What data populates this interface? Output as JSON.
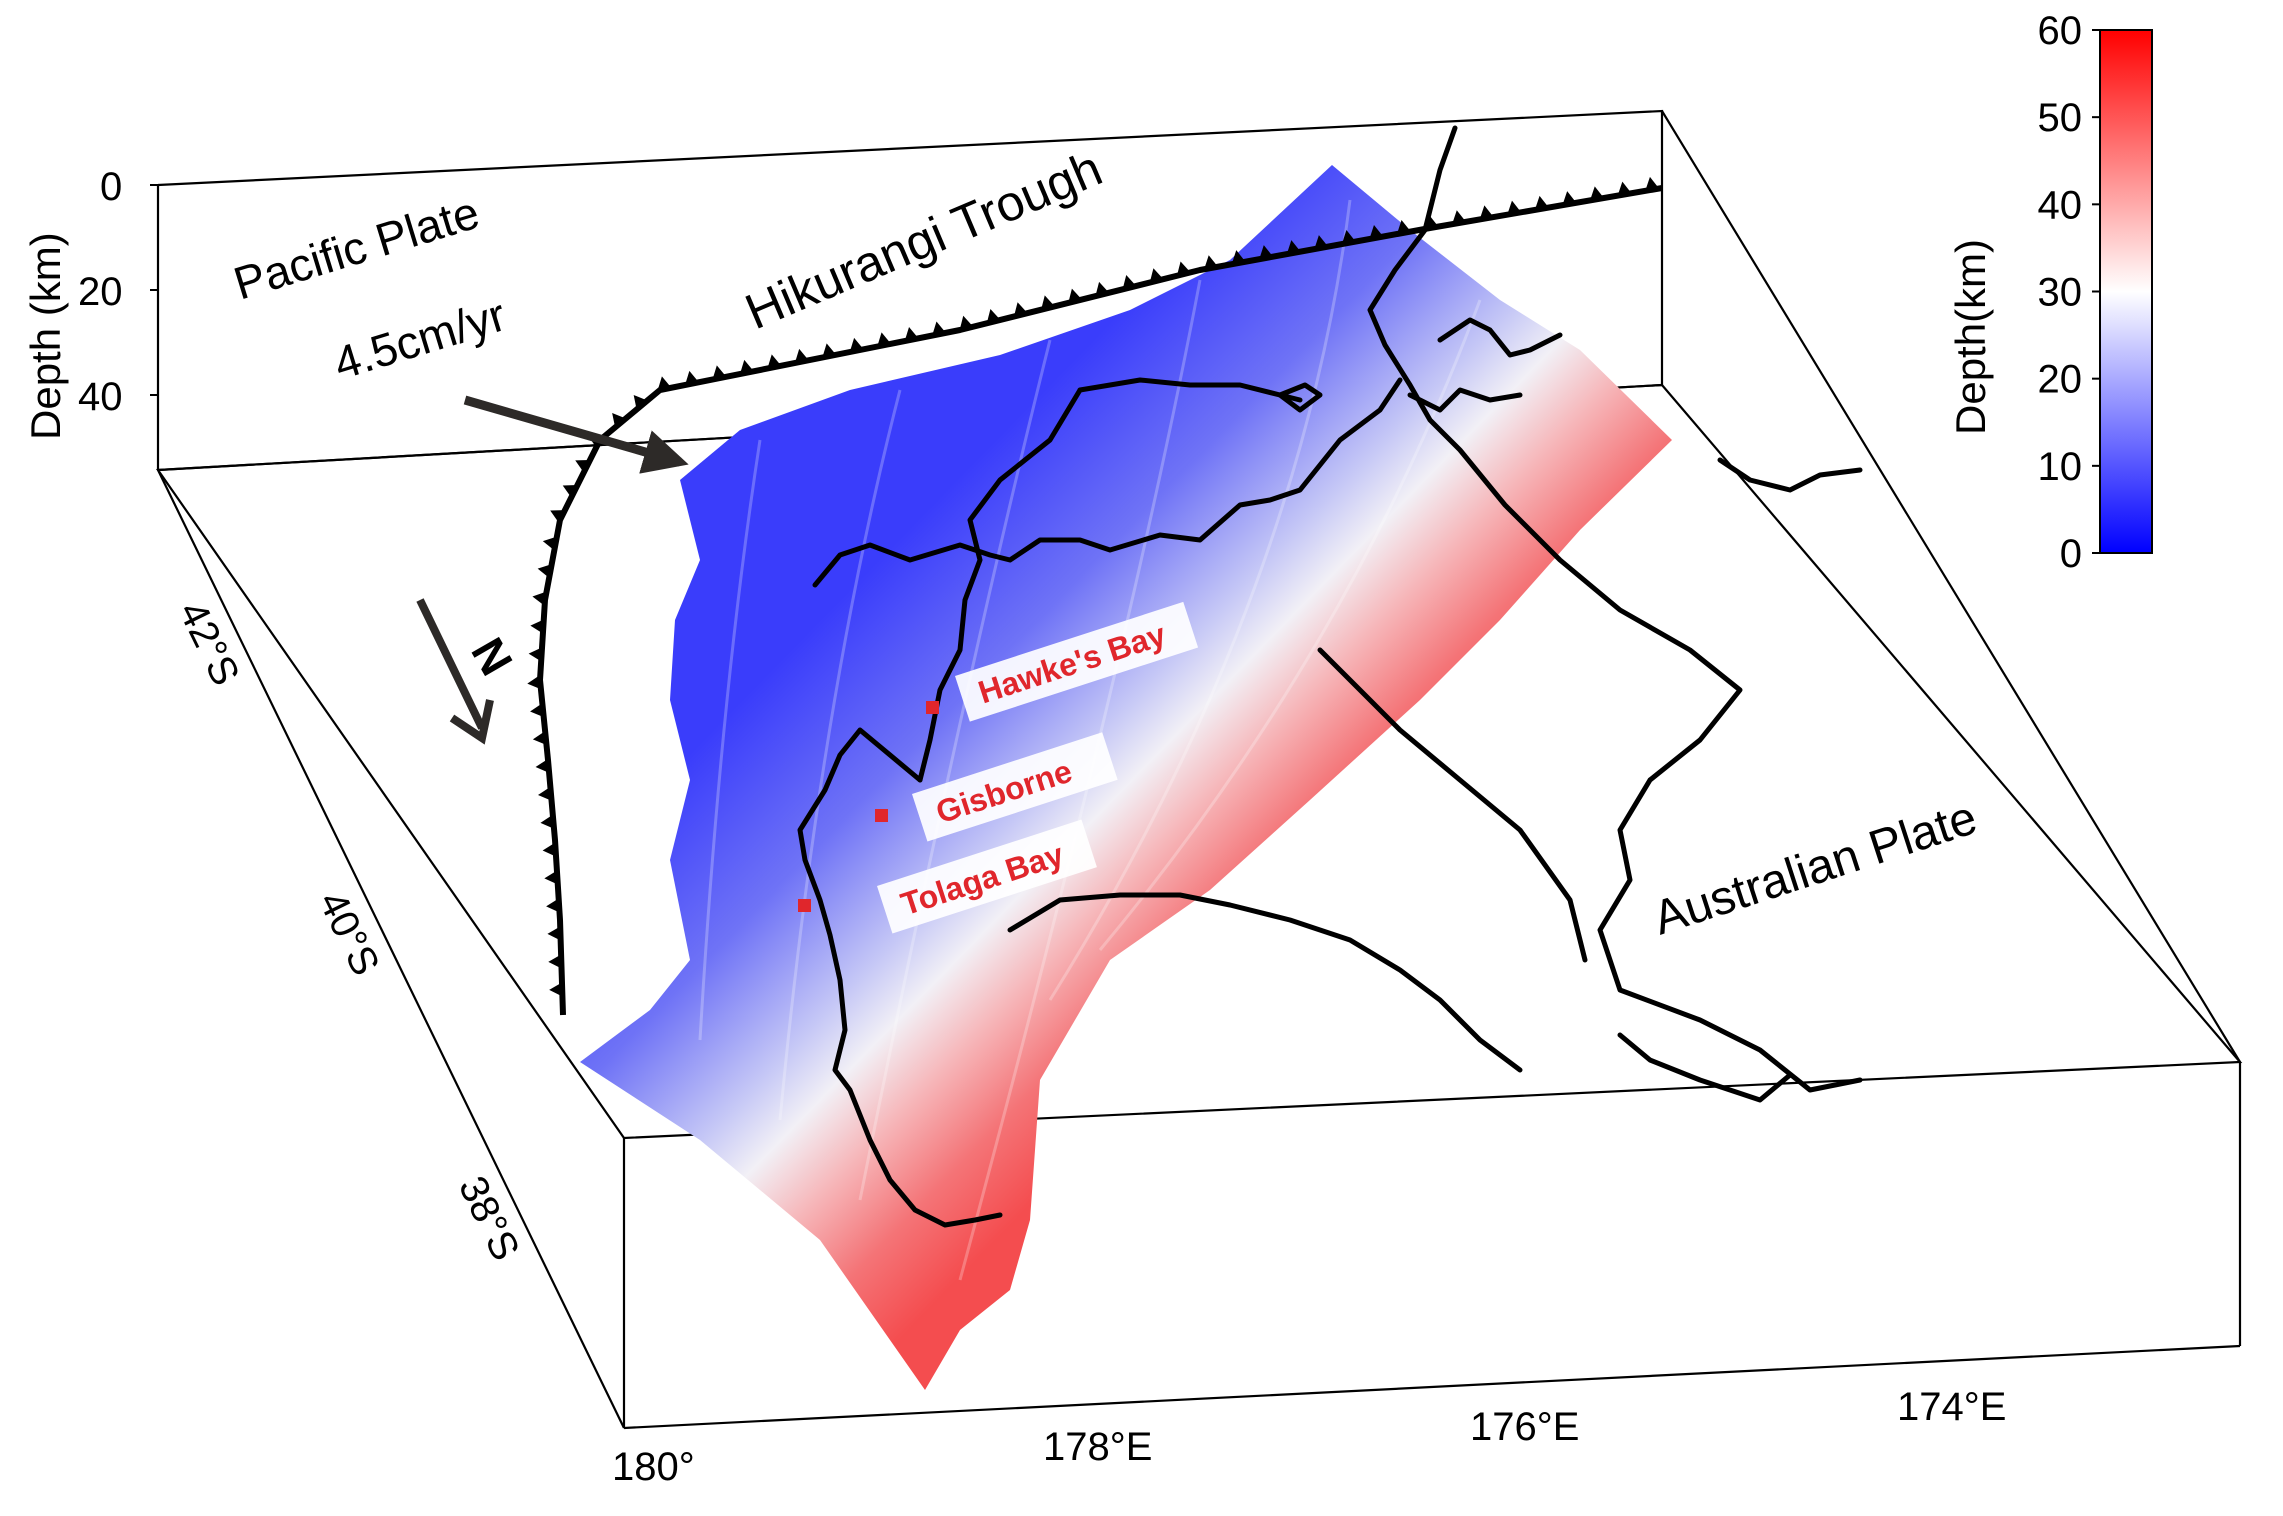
{
  "figure": {
    "depth_axis": {
      "label": "Depth (km)",
      "ticks": [
        "0",
        "20",
        "40"
      ]
    },
    "latitude_ticks": [
      "42°S",
      "40°S",
      "38°S"
    ],
    "longitude_ticks": [
      "180°",
      "178°E",
      "176°E",
      "174°E"
    ],
    "labels": {
      "pacific_plate": "Pacific Plate",
      "rate": "4.5cm/yr",
      "trough": "Hikurangi Trough",
      "australian_plate": "Australian Plate",
      "north": "N"
    },
    "places": [
      {
        "name": "Hawke's Bay"
      },
      {
        "name": "Gisborne"
      },
      {
        "name": "Tolaga Bay"
      }
    ],
    "colorbar": {
      "label": "Depth(km)",
      "ticks": [
        "0",
        "10",
        "20",
        "30",
        "40",
        "50",
        "60"
      ],
      "range": [
        0,
        60
      ],
      "colors": {
        "low": "#0000ff",
        "mid": "#ffffff",
        "high": "#ff0000"
      }
    },
    "colors": {
      "place_label": "#e0262c",
      "slab_shallow": "#3a3dfb",
      "slab_deep": "#f44d4f"
    },
    "icons": [
      "north-arrow-icon",
      "plate-motion-arrow-icon",
      "trench-barb-icon",
      "city-marker-icon"
    ]
  }
}
